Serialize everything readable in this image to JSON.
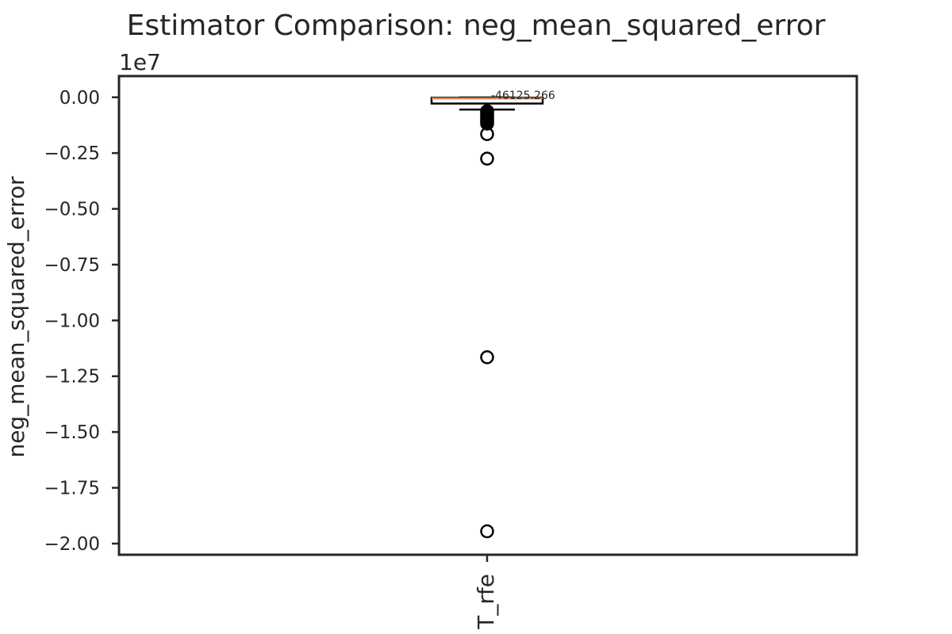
{
  "chart_data": {
    "type": "box",
    "title": "Estimator Comparison: neg_mean_squared_error",
    "xlabel": "",
    "ylabel": "neg_mean_squared_error",
    "scale_label": "1e7",
    "ylim": [
      -2.05,
      0.095
    ],
    "yticks": [
      0.0,
      -0.25,
      -0.5,
      -0.75,
      -1.0,
      -1.25,
      -1.5,
      -1.75,
      -2.0
    ],
    "ytick_labels": [
      "0.00",
      "−0.25",
      "−0.50",
      "−0.75",
      "−1.00",
      "−1.25",
      "−1.50",
      "−1.75",
      "−2.00"
    ],
    "categories": [
      "T_rfe"
    ],
    "boxes": [
      {
        "name": "T_rfe",
        "whisker_high": 0.0,
        "q3": -0.002,
        "median": -0.005,
        "q1": -0.028,
        "whisker_low": -0.055,
        "outliers": [
          -0.062,
          -0.068,
          -0.075,
          -0.082,
          -0.09,
          -0.098,
          -0.105,
          -0.112,
          -0.118,
          -0.165,
          -0.275,
          -1.165,
          -1.945
        ],
        "annotation": "-46125.266"
      }
    ],
    "colors": {
      "median": "#dd8452",
      "box": "#000000",
      "axes": "#262626"
    },
    "grid": false
  }
}
